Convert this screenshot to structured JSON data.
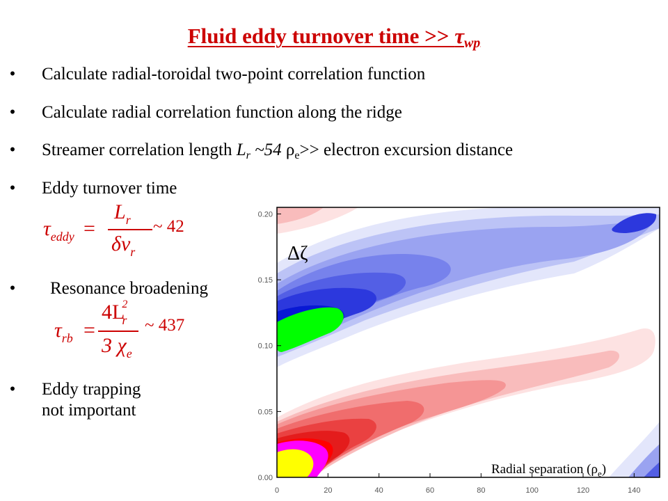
{
  "title": {
    "text": "Fluid eddy turnover time >> ",
    "tau": "τ",
    "sub": "wp"
  },
  "bullets": [
    {
      "marker": "•",
      "text": "Calculate radial-toroidal two-point correlation function"
    },
    {
      "marker": "•",
      "text": "Calculate radial correlation function along the ridge"
    },
    {
      "marker": "•",
      "pre": "Streamer correlation length ",
      "L": "L",
      "Lsub": "r",
      "val": " ~54 ",
      "rho": "ρ",
      "rhosub": "e",
      "post": ">> electron excursion distance"
    },
    {
      "marker": "•",
      "text": "Eddy turnover time"
    },
    {
      "marker": "•",
      "text": "Resonance broadening"
    },
    {
      "marker": "•",
      "line1": "Eddy trapping",
      "line2": "not important"
    }
  ],
  "equations": {
    "eddy": {
      "lhs": "τ",
      "lhs_sub": "eddy",
      "eq": "=",
      "num": "L",
      "num_sub": "r",
      "den": "δv",
      "den_sub": "r",
      "approx": "~ 42"
    },
    "rb": {
      "lhs": "τ",
      "lhs_sub": "rb",
      "eq": "=",
      "num": "4L",
      "num_sup": "2",
      "num_sub": "r",
      "den": "3 χ",
      "den_sub": "e",
      "approx": "~ 437"
    }
  },
  "chart_data": {
    "type": "heatmap",
    "description_kind": "contour",
    "x_ticks": [
      "0",
      "20",
      "40",
      "60",
      "80",
      "100",
      "120",
      "140"
    ],
    "y_ticks": [
      "0.00",
      "0.05",
      "0.10",
      "0.15",
      "0.20"
    ],
    "xlim": [
      0,
      150
    ],
    "ylim": [
      0,
      0.205
    ],
    "annotation_delta": "Δζ",
    "xlabel_text": "Radial separation (",
    "xlabel_rho": "ρ",
    "xlabel_sub": "e",
    "xlabel_close": ")",
    "colors": {
      "blue_levels": [
        "#e3e6fb",
        "#bcc3f6",
        "#9aa3f1",
        "#7782ec",
        "#535fe5",
        "#2c38dd",
        "#0818d4"
      ],
      "green": "#00ff00",
      "red_levels": [
        "#fde2e2",
        "#f9bcbc",
        "#f59595",
        "#f06d6d",
        "#ea4141",
        "#e41c1c",
        "#ff0000"
      ],
      "magenta": "#ff00ff",
      "yellow": "#ffff00"
    }
  }
}
